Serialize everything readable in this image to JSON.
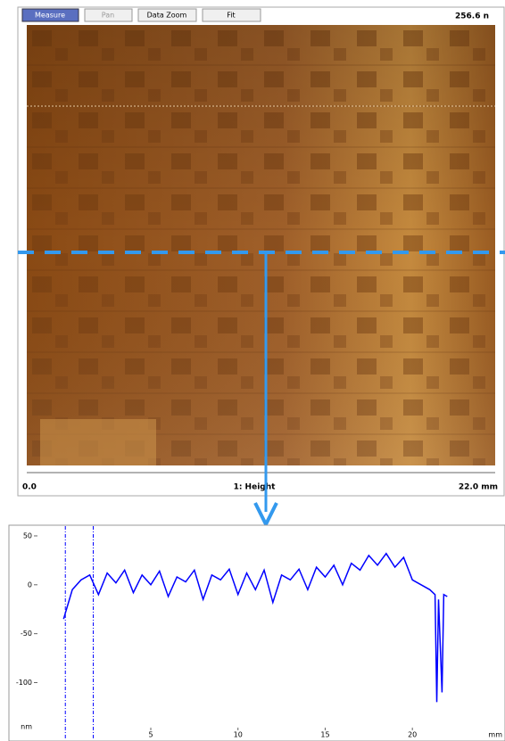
{
  "toolbar": {
    "buttons": [
      "Measure",
      "Pan",
      "Data Zoom",
      "Fit"
    ],
    "scale_label": "256.6 n"
  },
  "image": {
    "x_start_label": "0.0",
    "channel_label": "1: Height",
    "x_end_label": "22.0 mm"
  },
  "chart_data": {
    "type": "line",
    "x_label": "mm",
    "y_label": "nm",
    "x": [
      0,
      0.25,
      0.5,
      1,
      1.5,
      2,
      2.5,
      3,
      3.5,
      4,
      4.5,
      5,
      5.5,
      6,
      6.5,
      7,
      7.5,
      8,
      8.5,
      9,
      9.5,
      10,
      10.5,
      11,
      11.5,
      12,
      12.5,
      13,
      13.5,
      14,
      14.5,
      15,
      15.5,
      16,
      16.5,
      17,
      17.5,
      18,
      18.5,
      19,
      19.5,
      20,
      20.5,
      21,
      21.3,
      21.4,
      21.5,
      21.7,
      21.8,
      22
    ],
    "values": [
      -35,
      -20,
      -5,
      5,
      10,
      -10,
      12,
      2,
      15,
      -8,
      10,
      0,
      14,
      -12,
      8,
      3,
      15,
      -15,
      10,
      5,
      16,
      -10,
      12,
      -5,
      15,
      -18,
      10,
      5,
      16,
      -5,
      18,
      8,
      20,
      0,
      22,
      15,
      30,
      20,
      32,
      18,
      28,
      5,
      0,
      -5,
      -10,
      -120,
      -15,
      -110,
      -10,
      -12
    ],
    "color": "#0000ff",
    "cursors": [
      0.1,
      1.7
    ],
    "xlim": [
      -1.6,
      24.8
    ],
    "ylim": [
      -157,
      60
    ],
    "xticks": [
      5,
      10,
      15,
      20
    ],
    "yticks": [
      50,
      0,
      -50,
      -100
    ]
  }
}
